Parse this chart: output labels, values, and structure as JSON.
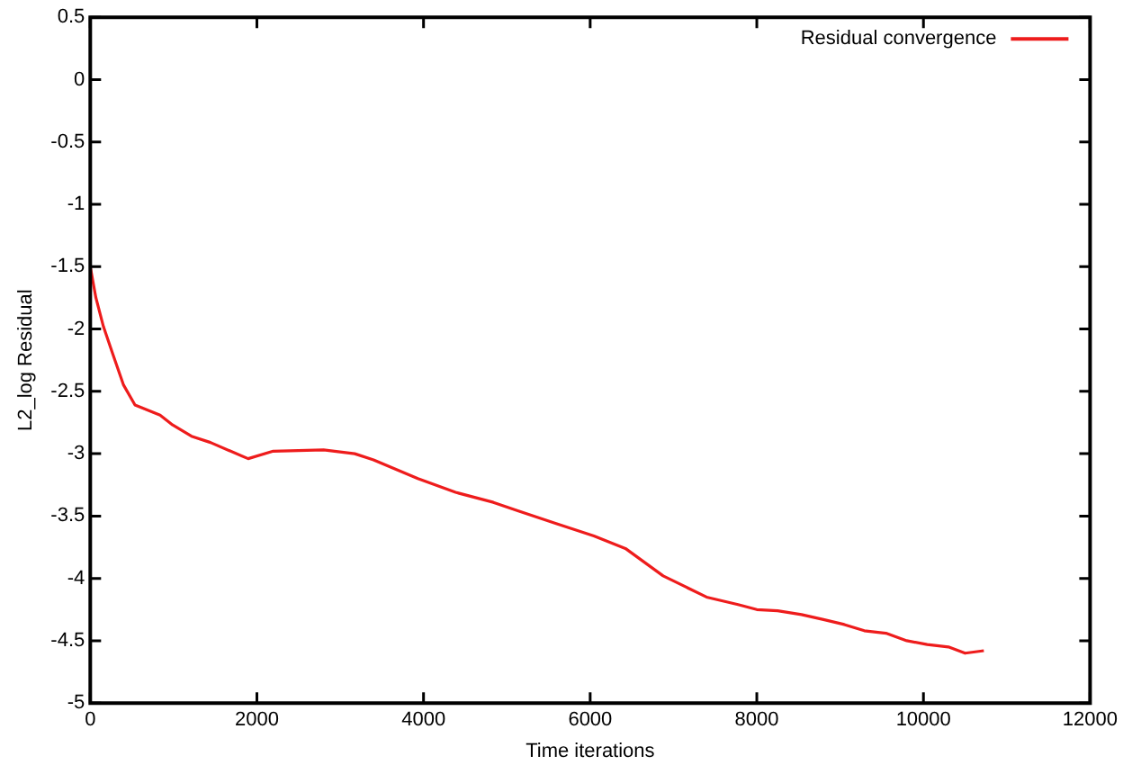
{
  "chart_data": {
    "type": "line",
    "xlabel": "Time iterations",
    "ylabel": "L2_log Residual",
    "xlim": [
      0,
      12000
    ],
    "xticks": [
      0,
      2000,
      4000,
      6000,
      8000,
      10000,
      12000
    ],
    "ylim": [
      -5,
      0.5
    ],
    "yticks": [
      -5,
      -4.5,
      -4,
      -3.5,
      -3,
      -2.5,
      -2,
      -1.5,
      -1,
      -0.5,
      0,
      0.5
    ],
    "grid": false,
    "legend": "top right",
    "marker": "none",
    "line_style": "solid",
    "series": [
      {
        "name": "Residual convergence",
        "color": "#ee1c1c",
        "x": [
          0,
          68,
          158,
          270,
          400,
          537,
          838,
          989,
          1215,
          1442,
          1895,
          2196,
          2800,
          3174,
          3400,
          3932,
          4385,
          4838,
          5139,
          5592,
          6045,
          6423,
          6876,
          7397,
          7775,
          8000,
          8250,
          8536,
          8800,
          9050,
          9290,
          9550,
          9800,
          10045,
          10300,
          10500,
          10725
        ],
        "values": [
          -1.5,
          -1.75,
          -1.98,
          -2.2,
          -2.45,
          -2.61,
          -2.69,
          -2.77,
          -2.86,
          -2.91,
          -3.04,
          -2.98,
          -2.97,
          -3.0,
          -3.05,
          -3.2,
          -3.31,
          -3.39,
          -3.46,
          -3.56,
          -3.66,
          -3.76,
          -3.98,
          -4.15,
          -4.21,
          -4.25,
          -4.26,
          -4.29,
          -4.33,
          -4.37,
          -4.42,
          -4.44,
          -4.5,
          -4.53,
          -4.55,
          -4.6,
          -4.58
        ]
      }
    ]
  }
}
